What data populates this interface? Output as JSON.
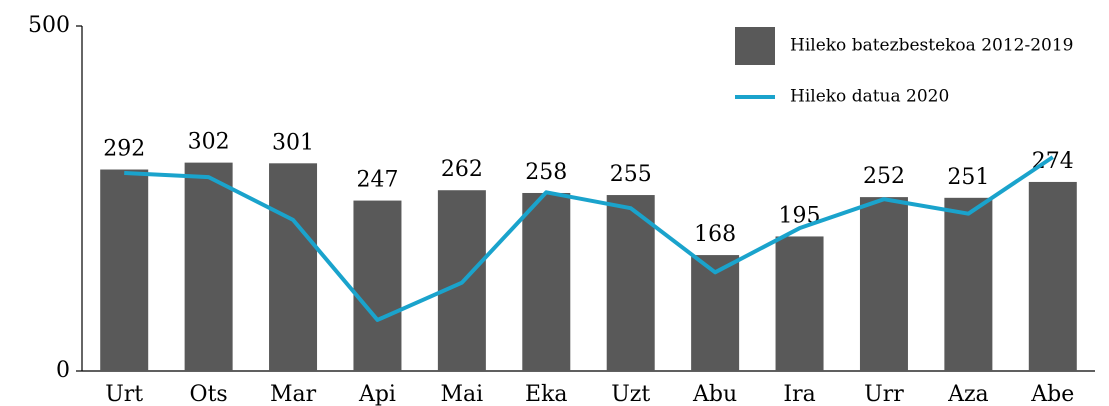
{
  "chart_data": {
    "type": "bar",
    "categories": [
      "Urt",
      "Ots",
      "Mar",
      "Api",
      "Mai",
      "Eka",
      "Uzt",
      "Abu",
      "Ira",
      "Urr",
      "Aza",
      "Abe"
    ],
    "series": [
      {
        "name": "Hileko batezbestekoa 2012-2019",
        "type": "bar",
        "color": "#595959",
        "values": [
          292,
          302,
          301,
          247,
          262,
          258,
          255,
          168,
          195,
          252,
          251,
          274
        ]
      },
      {
        "name": "Hileko datua 2020",
        "type": "line",
        "color": "#1aa3cc",
        "values": [
          287,
          281,
          219,
          74,
          128,
          259,
          236,
          143,
          207,
          249,
          228,
          310
        ]
      }
    ],
    "ylim": [
      0,
      500
    ],
    "yticks": [
      0,
      500
    ],
    "legend": "top-right"
  }
}
